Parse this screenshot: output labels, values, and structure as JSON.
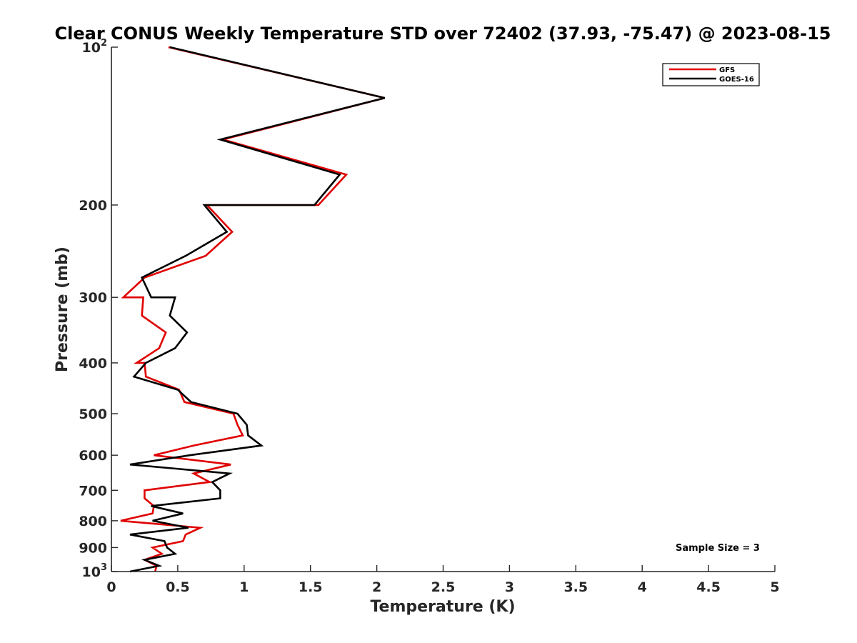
{
  "chart_data": {
    "type": "line",
    "title": "Clear CONUS Weekly Temperature STD over 72402 (37.93, -75.47) @ 2023-08-15",
    "xlabel": "Temperature (K)",
    "ylabel": "Pressure (mb)",
    "xlim": [
      0,
      5
    ],
    "ylim": [
      100,
      1000
    ],
    "yscale": "log",
    "y_reversed": true,
    "x_ticks": [
      0,
      0.5,
      1,
      1.5,
      2,
      2.5,
      3,
      3.5,
      4,
      4.5,
      5
    ],
    "x_tick_labels": [
      "0",
      "0.5",
      "1",
      "1.5",
      "2",
      "2.5",
      "3",
      "3.5",
      "4",
      "4.5",
      "5"
    ],
    "y_ticks": [
      {
        "value": 100,
        "base": "10",
        "exp": "2"
      },
      {
        "value": 200,
        "label": "200"
      },
      {
        "value": 300,
        "label": "300"
      },
      {
        "value": 400,
        "label": "400"
      },
      {
        "value": 500,
        "label": "500"
      },
      {
        "value": 600,
        "label": "600"
      },
      {
        "value": 700,
        "label": "700"
      },
      {
        "value": 800,
        "label": "800"
      },
      {
        "value": 900,
        "label": "900"
      },
      {
        "value": 1000,
        "base": "10",
        "exp": "3"
      }
    ],
    "legend_position": "top-right",
    "series": [
      {
        "name": "GFS",
        "color": "#e00000",
        "points": [
          [
            0.43,
            100
          ],
          [
            2.06,
            125
          ],
          [
            0.84,
            150
          ],
          [
            1.77,
            175
          ],
          [
            1.56,
            200
          ],
          [
            0.72,
            200
          ],
          [
            0.91,
            225
          ],
          [
            0.71,
            250
          ],
          [
            0.25,
            275
          ],
          [
            0.09,
            300
          ],
          [
            0.24,
            300
          ],
          [
            0.23,
            325
          ],
          [
            0.41,
            350
          ],
          [
            0.36,
            375
          ],
          [
            0.19,
            400
          ],
          [
            0.25,
            400
          ],
          [
            0.26,
            425
          ],
          [
            0.51,
            450
          ],
          [
            0.55,
            475
          ],
          [
            0.92,
            500
          ],
          [
            0.95,
            525
          ],
          [
            0.99,
            550
          ],
          [
            0.62,
            575
          ],
          [
            0.32,
            600
          ],
          [
            0.9,
            625
          ],
          [
            0.62,
            650
          ],
          [
            0.74,
            675
          ],
          [
            0.25,
            700
          ],
          [
            0.25,
            725
          ],
          [
            0.32,
            750
          ],
          [
            0.31,
            775
          ],
          [
            0.07,
            800
          ],
          [
            0.67,
            825
          ],
          [
            0.56,
            850
          ],
          [
            0.54,
            875
          ],
          [
            0.31,
            900
          ],
          [
            0.38,
            925
          ],
          [
            0.25,
            950
          ],
          [
            0.34,
            975
          ],
          [
            0.33,
            1000
          ]
        ]
      },
      {
        "name": "GOES-16",
        "color": "#000000",
        "points": [
          [
            0.44,
            100
          ],
          [
            2.06,
            125
          ],
          [
            0.82,
            150
          ],
          [
            1.72,
            175
          ],
          [
            1.53,
            200
          ],
          [
            0.7,
            200
          ],
          [
            0.87,
            225
          ],
          [
            0.56,
            250
          ],
          [
            0.23,
            275
          ],
          [
            0.3,
            300
          ],
          [
            0.48,
            300
          ],
          [
            0.44,
            325
          ],
          [
            0.57,
            350
          ],
          [
            0.48,
            375
          ],
          [
            0.26,
            400
          ],
          [
            0.26,
            400
          ],
          [
            0.17,
            425
          ],
          [
            0.5,
            450
          ],
          [
            0.6,
            475
          ],
          [
            0.95,
            500
          ],
          [
            1.02,
            525
          ],
          [
            1.03,
            550
          ],
          [
            1.13,
            575
          ],
          [
            0.59,
            600
          ],
          [
            0.14,
            625
          ],
          [
            0.89,
            650
          ],
          [
            0.76,
            675
          ],
          [
            0.82,
            700
          ],
          [
            0.82,
            725
          ],
          [
            0.3,
            750
          ],
          [
            0.54,
            775
          ],
          [
            0.31,
            800
          ],
          [
            0.58,
            825
          ],
          [
            0.14,
            850
          ],
          [
            0.4,
            875
          ],
          [
            0.42,
            900
          ],
          [
            0.48,
            925
          ],
          [
            0.25,
            950
          ],
          [
            0.36,
            975
          ],
          [
            0.14,
            1000
          ]
        ]
      }
    ],
    "annotation": "Sample Size = 3"
  }
}
